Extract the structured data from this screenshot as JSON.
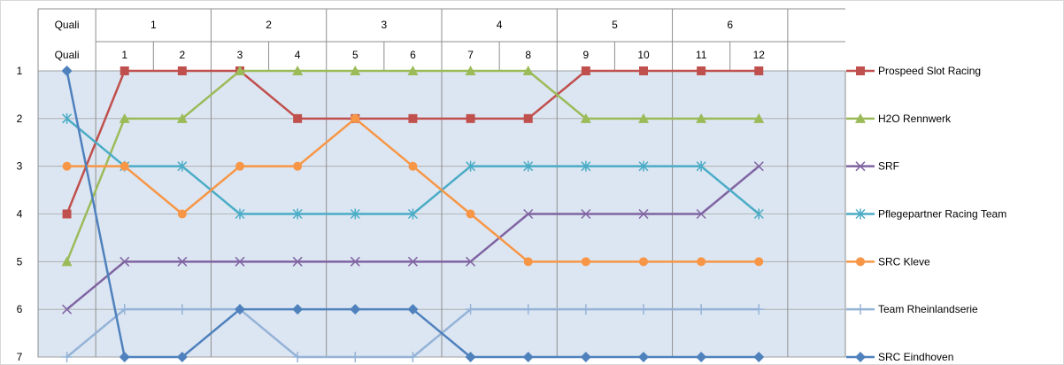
{
  "chart_data": {
    "type": "line",
    "title": "",
    "xlabel": "",
    "ylabel": "",
    "ylim": [
      1,
      7
    ],
    "y_inverted": true,
    "y_ticks": [
      "1",
      "2",
      "3",
      "4",
      "5",
      "6",
      "7"
    ],
    "header_groups": [
      "Quali",
      "1",
      "2",
      "3",
      "4",
      "5",
      "6"
    ],
    "categories": [
      "Quali",
      "1",
      "2",
      "3",
      "4",
      "5",
      "6",
      "7",
      "8",
      "9",
      "10",
      "11",
      "12"
    ],
    "grid": true,
    "legend_position": "right",
    "series": [
      {
        "name": "Prospeed Slot Racing",
        "color": "#C0504D",
        "marker": "square",
        "values": [
          4,
          1,
          1,
          1,
          2,
          2,
          2,
          2,
          2,
          1,
          1,
          1,
          1
        ]
      },
      {
        "name": "H2O Rennwerk",
        "color": "#9BBB59",
        "marker": "triangle",
        "values": [
          5,
          2,
          2,
          1,
          1,
          1,
          1,
          1,
          1,
          2,
          2,
          2,
          2
        ]
      },
      {
        "name": "SRF",
        "color": "#8064A2",
        "marker": "x",
        "values": [
          6,
          5,
          5,
          5,
          5,
          5,
          5,
          5,
          4,
          4,
          4,
          4,
          3
        ]
      },
      {
        "name": "Pflegepartner Racing Team",
        "color": "#4BACC6",
        "marker": "star",
        "values": [
          2,
          3,
          3,
          4,
          4,
          4,
          4,
          3,
          3,
          3,
          3,
          3,
          4
        ]
      },
      {
        "name": "SRC Kleve",
        "color": "#F79646",
        "marker": "circle",
        "values": [
          3,
          3,
          4,
          3,
          3,
          2,
          3,
          4,
          5,
          5,
          5,
          5,
          5
        ]
      },
      {
        "name": "Team Rheinlandserie",
        "color": "#95B3D7",
        "marker": "plus",
        "values": [
          7,
          6,
          6,
          6,
          7,
          7,
          7,
          6,
          6,
          6,
          6,
          6,
          6
        ]
      },
      {
        "name": "SRC Eindhoven",
        "color": "#4F81BD",
        "marker": "diamond",
        "values": [
          1,
          7,
          7,
          6,
          6,
          6,
          6,
          7,
          7,
          7,
          7,
          7,
          7
        ]
      }
    ]
  }
}
